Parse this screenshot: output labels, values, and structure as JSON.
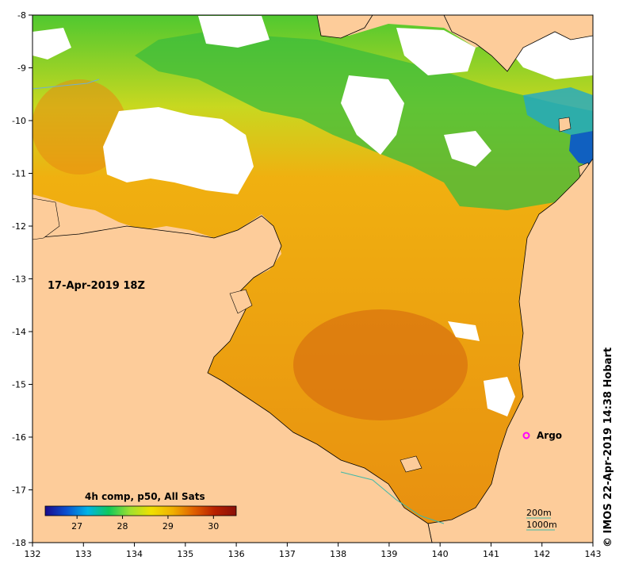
{
  "map": {
    "date_label": "17-Apr-2019 18Z",
    "copyright": "© IMOS 22-Apr-2019 14:38 Hobart",
    "x_axis": {
      "ticks": [
        "132",
        "133",
        "134",
        "135",
        "136",
        "137",
        "138",
        "139",
        "140",
        "141",
        "142",
        "143"
      ],
      "range": [
        132,
        143
      ]
    },
    "y_axis": {
      "ticks": [
        "-8",
        "-9",
        "-10",
        "-11",
        "-12",
        "-13",
        "-14",
        "-15",
        "-16",
        "-17",
        "-18"
      ],
      "range": [
        -18,
        -8
      ]
    },
    "colorbar": {
      "title": "4h comp, p50, All Sats",
      "ticks": [
        "27",
        "28",
        "29",
        "30"
      ],
      "range": [
        26.3,
        30.5
      ],
      "colors": [
        "#1a0a8c",
        "#0a50d0",
        "#00b4e6",
        "#10c85a",
        "#a0e030",
        "#f0e000",
        "#f0b000",
        "#e06000",
        "#b82000",
        "#8a1008"
      ]
    },
    "argo": {
      "label": "Argo",
      "lon": 141.7,
      "lat": -16.0,
      "color": "#ff00ff"
    },
    "contours": {
      "label_200m": "200m",
      "label_1000m": "1000m",
      "color": "#40b8a8"
    },
    "colors": {
      "land": "#fdcc9a",
      "cloud": "#ffffff",
      "warm": "#f0a218",
      "cool": "#38c030",
      "coast": "#000000"
    }
  }
}
